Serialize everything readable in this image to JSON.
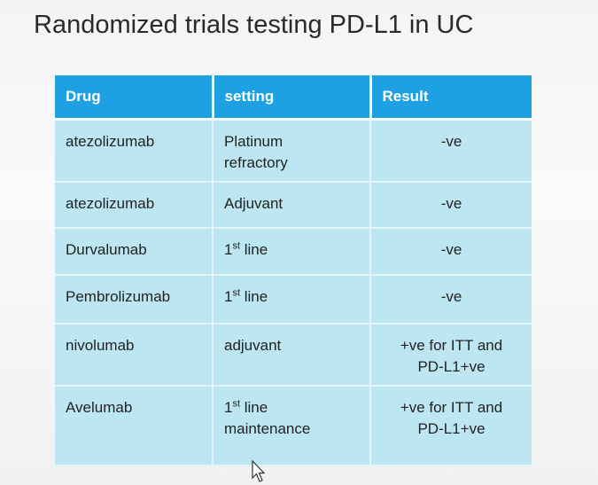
{
  "header": {
    "title": "Randomized trials testing PD-L1 in UC"
  },
  "table": {
    "columns": [
      "Drug",
      "setting",
      "Result"
    ],
    "rows": [
      [
        [
          "atezolizumab"
        ],
        [
          "Platinum",
          "refractory"
        ],
        [
          "-ve"
        ]
      ],
      [
        [
          "atezolizumab"
        ],
        [
          "Adjuvant"
        ],
        [
          "-ve"
        ]
      ],
      [
        [
          "Durvalumab"
        ],
        [
          {
            "base": "1",
            "sup": "st",
            "after": " line"
          }
        ],
        [
          "-ve"
        ]
      ],
      [
        [
          "Pembrolizumab"
        ],
        [
          {
            "base": "1",
            "sup": "st",
            "after": " line"
          }
        ],
        [
          "-ve"
        ]
      ],
      [
        [
          "nivolumab"
        ],
        [
          "adjuvant"
        ],
        [
          "+ve for ITT and",
          "PD-L1+ve"
        ]
      ],
      [
        [
          "Avelumab"
        ],
        [
          {
            "base": "1",
            "sup": "st",
            "after": " line"
          },
          "maintenance"
        ],
        [
          "+ve for ITT and",
          "PD-L1+ve"
        ]
      ]
    ]
  }
}
